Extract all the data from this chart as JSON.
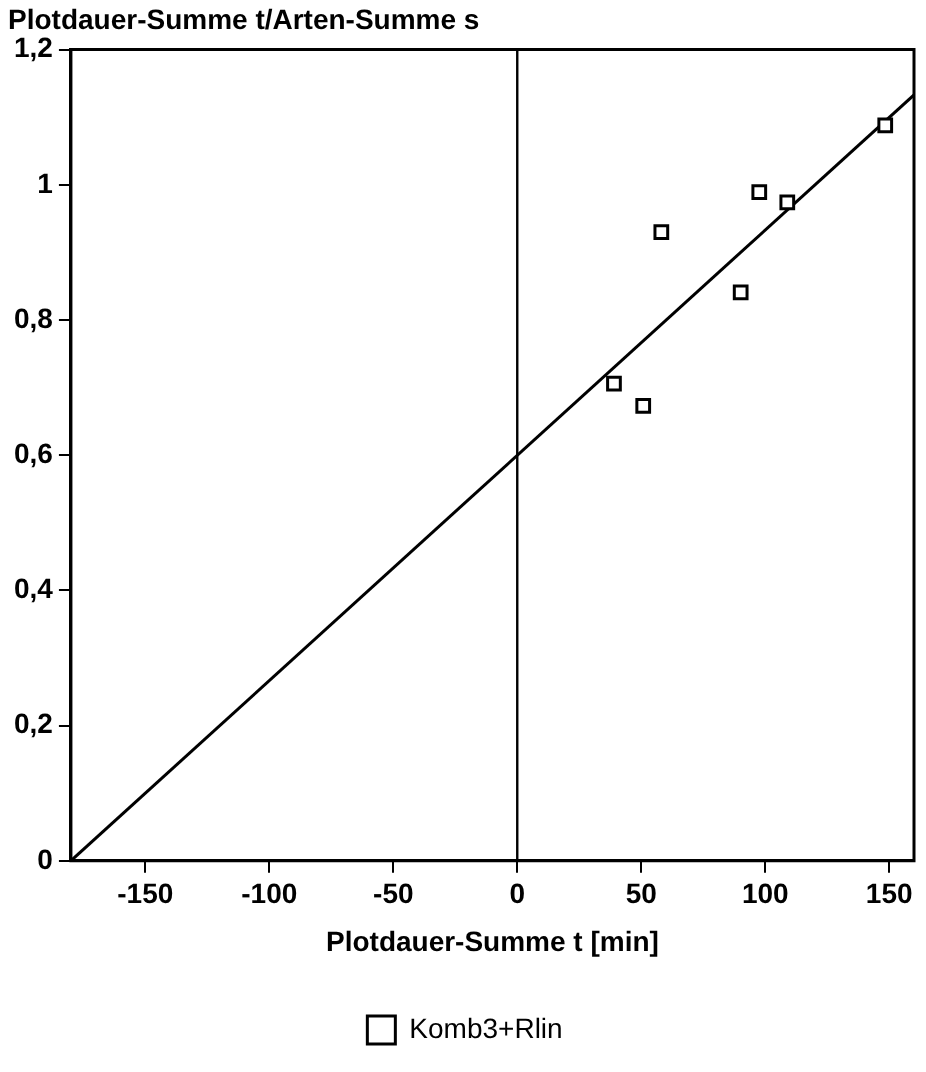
{
  "chart_data": {
    "type": "scatter",
    "ylabel": "Plotdauer-Summe t/Arten-Summe s",
    "xlabel": "Plotdauer-Summe t [min]",
    "xlim": [
      -180,
      160
    ],
    "xticks": [
      -150,
      -100,
      -50,
      0,
      50,
      100,
      150
    ],
    "ylim": [
      0,
      1.2
    ],
    "yticks": [
      0,
      {
        "value": 0.2,
        "label": "0,2"
      },
      {
        "value": 0.4,
        "label": "0,4"
      },
      {
        "value": 0.6,
        "label": "0,6"
      },
      {
        "value": 0.8,
        "label": "0,8"
      },
      1,
      {
        "value": 1.2,
        "label": "1,2"
      }
    ],
    "series": [
      {
        "name": "Komb3+Rlin",
        "color": "#000000",
        "marker": "square",
        "x": [
          39,
          50.8,
          58.1,
          90.1,
          97.6,
          108.9,
          148.4
        ],
        "values": [
          0.706,
          0.673,
          0.93,
          0.841,
          0.989,
          0.974,
          1.088
        ]
      },
      {
        "type": "line",
        "color": "#000000",
        "marker": "none",
        "x": [
          -180,
          160
        ],
        "values": [
          0,
          1.133
        ]
      }
    ],
    "ref_lines": [
      {
        "axis": "x",
        "value": 0,
        "color": "#000000"
      }
    ],
    "grid": false,
    "legend": "bottom"
  }
}
